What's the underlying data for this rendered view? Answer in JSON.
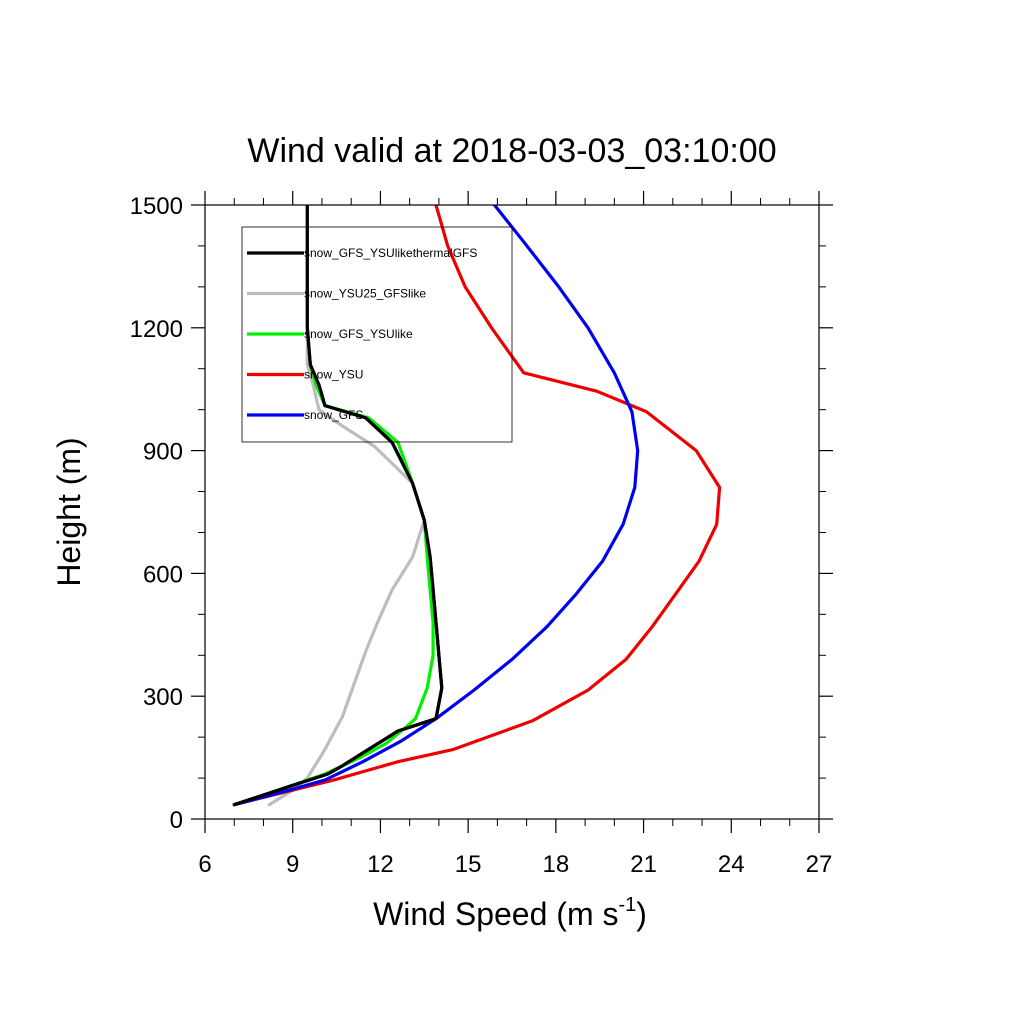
{
  "chart_data": {
    "type": "line",
    "title": "Wind valid at 2018-03-03_03:10:00",
    "xlabel": "Wind Speed (m s",
    "xlabel_sup": "-1",
    "xlabel_end": ")",
    "ylabel": "Height (m)",
    "xlim": [
      6,
      27
    ],
    "ylim": [
      0,
      1500
    ],
    "xticks": [
      6,
      9,
      12,
      15,
      18,
      21,
      24,
      27
    ],
    "yticks": [
      0,
      300,
      600,
      900,
      1200,
      1500
    ],
    "xtick_labels": [
      "6",
      "9",
      "12",
      "15",
      "18",
      "21",
      "24",
      "27"
    ],
    "ytick_labels": [
      "0",
      "300",
      "600",
      "900",
      "1200",
      "1500"
    ],
    "grid": false,
    "legend_position": "top-left",
    "series": [
      {
        "name": "snow_GFS_YSUlikethermalGFS",
        "color": "#000000",
        "points": [
          [
            7.0,
            35
          ],
          [
            8.9,
            80
          ],
          [
            10.2,
            110
          ],
          [
            10.7,
            130
          ],
          [
            11.7,
            175
          ],
          [
            12.6,
            215
          ],
          [
            13.9,
            245
          ],
          [
            14.1,
            320
          ],
          [
            14.0,
            400
          ],
          [
            13.9,
            480
          ],
          [
            13.8,
            560
          ],
          [
            13.7,
            640
          ],
          [
            13.5,
            730
          ],
          [
            13.1,
            820
          ],
          [
            12.4,
            920
          ],
          [
            11.5,
            980
          ],
          [
            10.1,
            1010
          ],
          [
            9.9,
            1060
          ],
          [
            9.6,
            1110
          ],
          [
            9.5,
            1200
          ],
          [
            9.5,
            1300
          ],
          [
            9.5,
            1400
          ],
          [
            9.5,
            1500
          ]
        ]
      },
      {
        "name": "snow_YSU25_GFSlike",
        "color": "#bdbdbd",
        "points": [
          [
            8.2,
            35
          ],
          [
            9.0,
            70
          ],
          [
            9.5,
            100
          ],
          [
            10.1,
            170
          ],
          [
            10.7,
            250
          ],
          [
            11.1,
            330
          ],
          [
            11.5,
            410
          ],
          [
            11.9,
            480
          ],
          [
            12.4,
            560
          ],
          [
            13.1,
            640
          ],
          [
            13.5,
            730
          ],
          [
            13.1,
            820
          ],
          [
            11.8,
            910
          ],
          [
            10.7,
            960
          ],
          [
            9.9,
            1000
          ],
          [
            9.7,
            1060
          ],
          [
            9.5,
            1110
          ],
          [
            9.5,
            1200
          ],
          [
            9.5,
            1300
          ],
          [
            9.5,
            1400
          ],
          [
            9.5,
            1500
          ]
        ]
      },
      {
        "name": "snow_GFS_YSUlike",
        "color": "#00ee00",
        "points": [
          [
            7.0,
            35
          ],
          [
            8.9,
            80
          ],
          [
            10.1,
            110
          ],
          [
            11.3,
            150
          ],
          [
            12.2,
            185
          ],
          [
            12.8,
            220
          ],
          [
            13.2,
            245
          ],
          [
            13.6,
            320
          ],
          [
            13.8,
            400
          ],
          [
            13.8,
            480
          ],
          [
            13.7,
            560
          ],
          [
            13.6,
            640
          ],
          [
            13.5,
            730
          ],
          [
            13.1,
            820
          ],
          [
            12.6,
            920
          ],
          [
            11.6,
            980
          ],
          [
            10.1,
            1010
          ],
          [
            9.8,
            1060
          ],
          [
            9.6,
            1110
          ],
          [
            9.5,
            1200
          ],
          [
            9.5,
            1300
          ],
          [
            9.5,
            1400
          ],
          [
            9.5,
            1500
          ]
        ]
      },
      {
        "name": "snow_YSU",
        "color": "#ee0000",
        "points": [
          [
            7.0,
            35
          ],
          [
            8.4,
            60
          ],
          [
            10.4,
            95
          ],
          [
            12.6,
            140
          ],
          [
            14.5,
            170
          ],
          [
            17.2,
            240
          ],
          [
            19.1,
            315
          ],
          [
            20.4,
            390
          ],
          [
            21.3,
            470
          ],
          [
            22.1,
            550
          ],
          [
            22.9,
            630
          ],
          [
            23.5,
            720
          ],
          [
            23.6,
            810
          ],
          [
            22.8,
            900
          ],
          [
            21.1,
            995
          ],
          [
            19.4,
            1045
          ],
          [
            16.9,
            1090
          ],
          [
            15.8,
            1200
          ],
          [
            14.9,
            1300
          ],
          [
            14.3,
            1400
          ],
          [
            13.9,
            1500
          ]
        ]
      },
      {
        "name": "snow_GFS",
        "color": "#0000ee",
        "points": [
          [
            7.0,
            35
          ],
          [
            8.6,
            65
          ],
          [
            10.1,
            95
          ],
          [
            11.4,
            140
          ],
          [
            12.7,
            190
          ],
          [
            13.9,
            245
          ],
          [
            15.2,
            315
          ],
          [
            16.5,
            390
          ],
          [
            17.7,
            470
          ],
          [
            18.7,
            550
          ],
          [
            19.6,
            630
          ],
          [
            20.3,
            720
          ],
          [
            20.7,
            810
          ],
          [
            20.8,
            900
          ],
          [
            20.6,
            995
          ],
          [
            20.0,
            1090
          ],
          [
            19.1,
            1200
          ],
          [
            18.1,
            1300
          ],
          [
            16.9,
            1410
          ],
          [
            15.9,
            1500
          ]
        ]
      }
    ]
  }
}
